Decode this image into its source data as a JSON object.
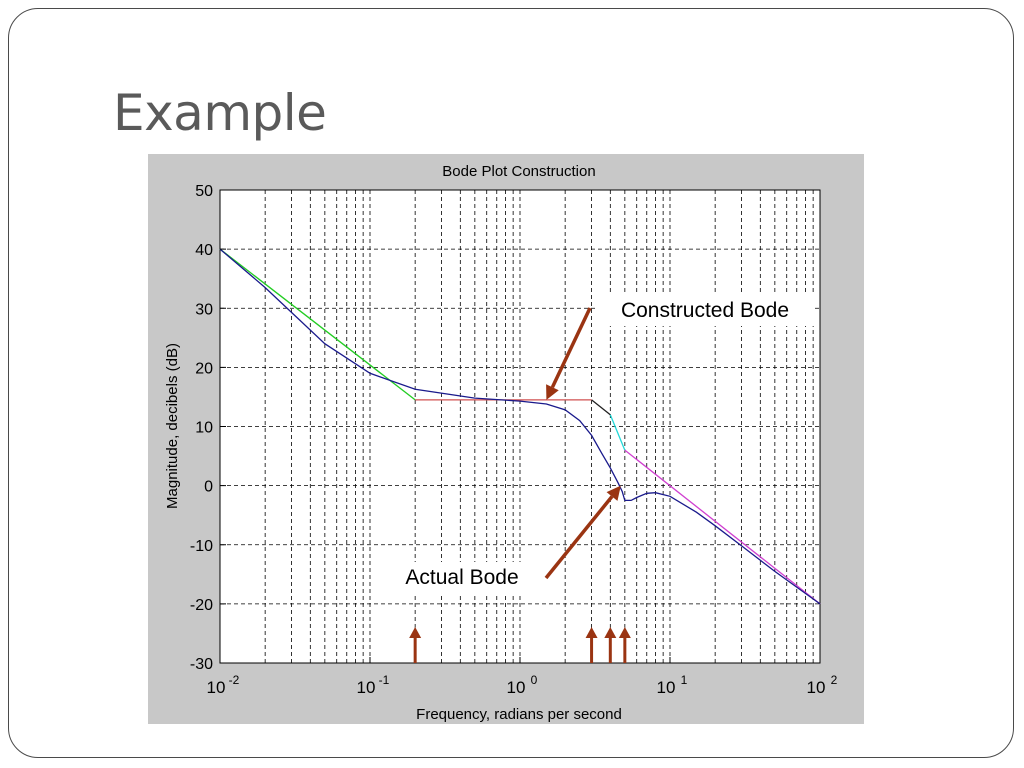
{
  "slide": {
    "title": "Example"
  },
  "colors": {
    "figure_bg": "#c8c8c8",
    "actual": "#1a1a8c",
    "low_asymptote": "#22cc22",
    "constructed_flat": "#d05050",
    "constructed_mid": "#202020",
    "constructed_cyan": "#22d8d8",
    "high_asymptote": "#d040d0",
    "annotation": "#9a3412"
  },
  "chart_data": {
    "type": "line",
    "title": "Bode Plot Construction",
    "xlabel": "Frequency, radians per second",
    "ylabel": "Magnitude, decibels (dB)",
    "xscale": "log",
    "xlim": [
      0.01,
      100
    ],
    "ylim": [
      -30,
      50
    ],
    "grid": true,
    "x_ticks": [
      {
        "base": "10",
        "exp": "-2"
      },
      {
        "base": "10",
        "exp": "-1"
      },
      {
        "base": "10",
        "exp": "0"
      },
      {
        "base": "10",
        "exp": "1"
      },
      {
        "base": "10",
        "exp": "2"
      }
    ],
    "y_ticks": [
      "50",
      "40",
      "30",
      "20",
      "10",
      "0",
      "-10",
      "-20",
      "-30"
    ],
    "series": [
      {
        "role": "low-asymptote",
        "color": "#22cc22",
        "points": [
          [
            0.01,
            40
          ],
          [
            0.2,
            14.5
          ]
        ]
      },
      {
        "role": "constructed-flat",
        "color": "#d05050",
        "points": [
          [
            0.2,
            14.5
          ],
          [
            3,
            14.5
          ]
        ]
      },
      {
        "role": "constructed-mid",
        "color": "#202020",
        "points": [
          [
            3,
            14.5
          ],
          [
            4,
            12
          ]
        ]
      },
      {
        "role": "constructed-cyan",
        "color": "#22d8d8",
        "points": [
          [
            4,
            12
          ],
          [
            5,
            6
          ]
        ]
      },
      {
        "role": "high-asymptote",
        "color": "#d040d0",
        "points": [
          [
            5,
            6
          ],
          [
            100,
            -20
          ]
        ]
      },
      {
        "role": "actual",
        "color": "#1a1a8c",
        "points": [
          [
            0.01,
            40
          ],
          [
            0.02,
            33.5
          ],
          [
            0.05,
            24
          ],
          [
            0.1,
            19
          ],
          [
            0.2,
            16.3
          ],
          [
            0.5,
            14.8
          ],
          [
            1,
            14.3
          ],
          [
            1.5,
            13.8
          ],
          [
            2,
            12.8
          ],
          [
            2.5,
            11
          ],
          [
            3,
            8.5
          ],
          [
            3.5,
            5.5
          ],
          [
            4,
            3
          ],
          [
            4.5,
            0.5
          ],
          [
            4.8,
            -1
          ],
          [
            5,
            -2.5
          ],
          [
            5.5,
            -2.5
          ],
          [
            6,
            -2
          ],
          [
            7,
            -1.3
          ],
          [
            8,
            -1.2
          ],
          [
            10,
            -1.8
          ],
          [
            15,
            -4.5
          ],
          [
            20,
            -6.8
          ],
          [
            30,
            -10.2
          ],
          [
            50,
            -14.5
          ],
          [
            100,
            -20
          ]
        ]
      }
    ],
    "marker_arrows_x": [
      0.2,
      3,
      4,
      5
    ],
    "annotations": [
      {
        "text": "Constructed Bode",
        "target": [
          1.5,
          14.5
        ]
      },
      {
        "text": "Actual Bode",
        "target": [
          4.7,
          0
        ]
      }
    ]
  }
}
